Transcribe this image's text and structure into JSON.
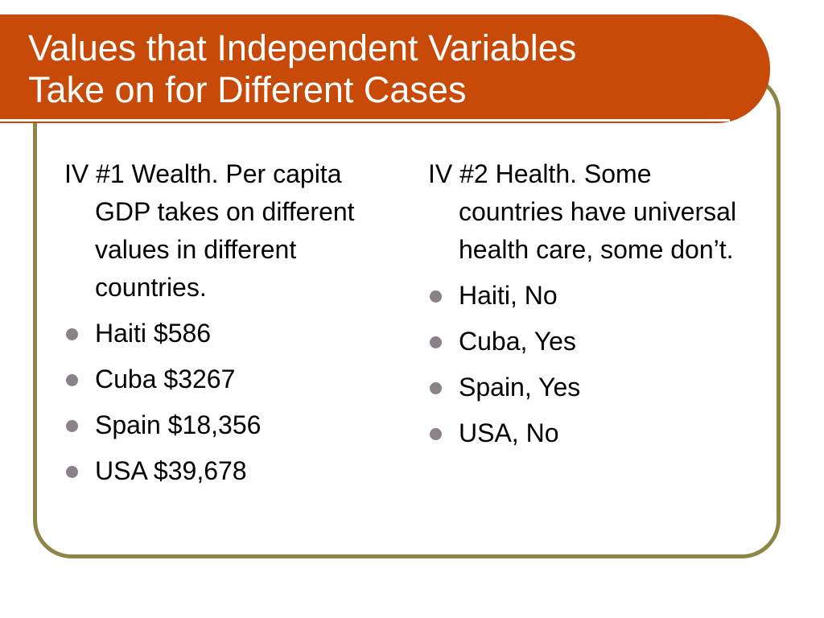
{
  "slide": {
    "title_line1": "Values that Independent Variables",
    "title_line2": "Take on for Different Cases",
    "colors": {
      "title_bar": "#c74a08",
      "frame_border": "#8c8747",
      "bullet": "#8a8288",
      "text": "#000000"
    }
  },
  "left_column": {
    "intro": "IV #1 Wealth.  Per capita GDP takes on different values in different countries.",
    "items": [
      {
        "label": "Haiti $586"
      },
      {
        "label": "Cuba $3267"
      },
      {
        "label": "Spain $18,356"
      },
      {
        "label": "USA $39,678"
      }
    ]
  },
  "right_column": {
    "intro": "IV #2 Health.  Some countries have universal health care, some don’t.",
    "items": [
      {
        "label": "Haiti, No"
      },
      {
        "label": "Cuba, Yes"
      },
      {
        "label": "Spain, Yes"
      },
      {
        "label": "USA, No"
      }
    ]
  }
}
